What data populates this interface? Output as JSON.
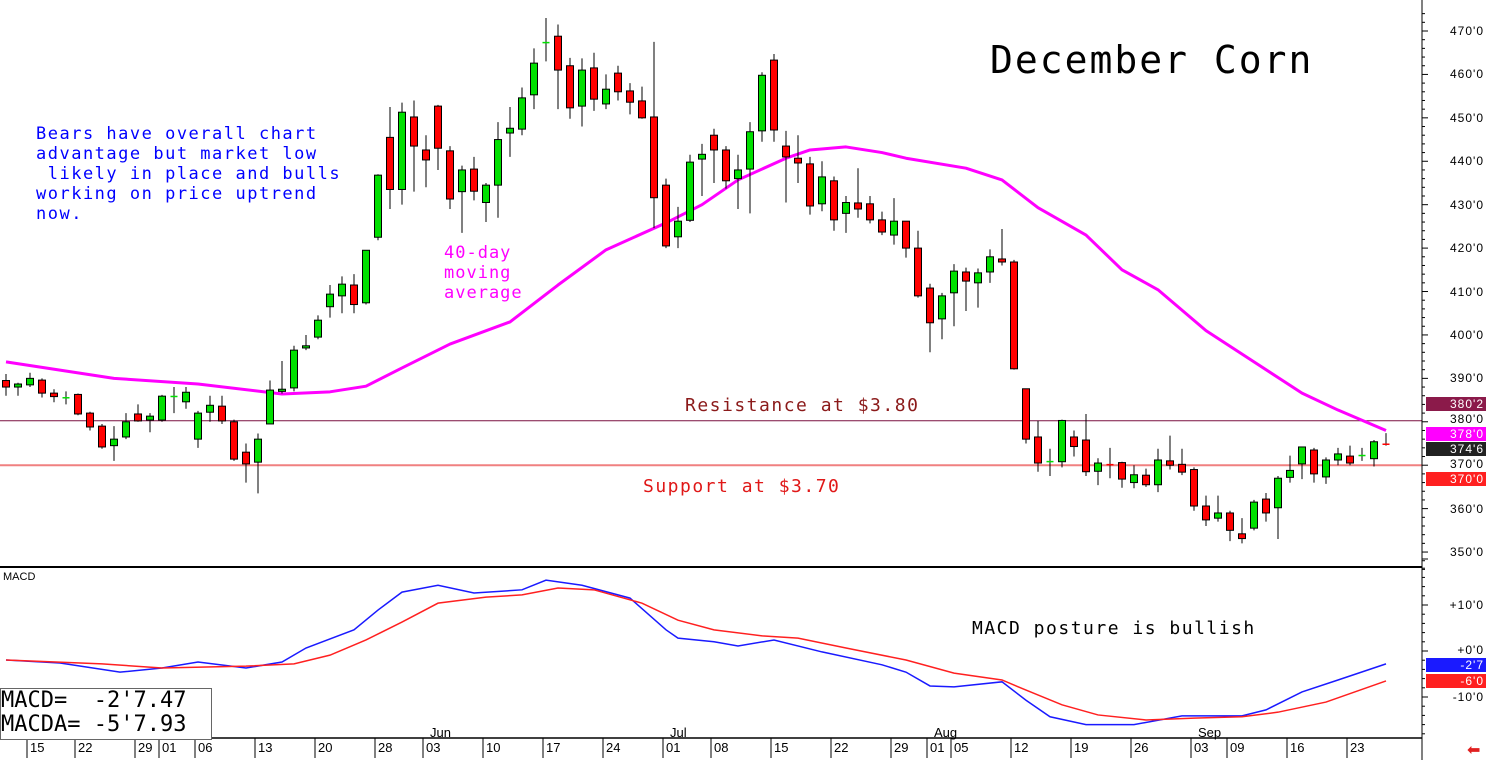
{
  "chart_data": {
    "type": "candlestick",
    "title": "December Corn",
    "price_axis": {
      "ylim": [
        347,
        474
      ],
      "ticks": [
        "470'0",
        "460'0",
        "450'0",
        "440'0",
        "430'0",
        "420'0",
        "410'0",
        "400'0",
        "390'0",
        "380'0",
        "370'0",
        "360'0",
        "350'0"
      ],
      "tick_values": [
        470,
        460,
        450,
        440,
        430,
        420,
        410,
        400,
        390,
        380,
        370,
        360,
        350
      ]
    },
    "candles_ohlc": [
      [
        389.5,
        391,
        386,
        388
      ],
      [
        388,
        389,
        386,
        388.7
      ],
      [
        388.5,
        391.3,
        388,
        390
      ],
      [
        389.6,
        390,
        385.6,
        386.6
      ],
      [
        386.6,
        387.5,
        384.5,
        385.8
      ],
      [
        385.7,
        387,
        384,
        385.7
      ],
      [
        386.3,
        386.5,
        381.5,
        381.8
      ],
      [
        382,
        382.3,
        378,
        378.8
      ],
      [
        379,
        379.5,
        373.8,
        374.2
      ],
      [
        374.5,
        379,
        371,
        376
      ],
      [
        376.5,
        382,
        376,
        380
      ],
      [
        381.8,
        384,
        380,
        380.2
      ],
      [
        380.4,
        382,
        377.6,
        381.3
      ],
      [
        380.4,
        386.2,
        380,
        385.9
      ],
      [
        386,
        388,
        382,
        386
      ],
      [
        384.6,
        388,
        383,
        386.8
      ],
      [
        376,
        382.5,
        374,
        382
      ],
      [
        382.2,
        386,
        380,
        383.8
      ],
      [
        383.6,
        386,
        379.5,
        380.2
      ],
      [
        380,
        380.5,
        371,
        371.4
      ],
      [
        373,
        375,
        366,
        370.3
      ],
      [
        370.7,
        377.3,
        363.5,
        376
      ],
      [
        379.5,
        389.5,
        379.5,
        387.3
      ],
      [
        387,
        394,
        386.5,
        387.5
      ],
      [
        387.8,
        397.5,
        387,
        396.5
      ],
      [
        397,
        400,
        396.5,
        397.5
      ],
      [
        399.5,
        404.5,
        399,
        403.4
      ],
      [
        406.5,
        411.5,
        404,
        409.4
      ],
      [
        409,
        413.5,
        405,
        411.7
      ],
      [
        411.5,
        414,
        405,
        407
      ],
      [
        407.4,
        419.5,
        407,
        419.5
      ],
      [
        422.5,
        437,
        421.8,
        436.8
      ],
      [
        445.5,
        452.5,
        429,
        433.5
      ],
      [
        433.5,
        453.5,
        430,
        451.3
      ],
      [
        450.2,
        454,
        433,
        443.5
      ],
      [
        442.6,
        446,
        434,
        440.3
      ],
      [
        452.7,
        453,
        438,
        443
      ],
      [
        442.4,
        443.5,
        429,
        431.3
      ],
      [
        433,
        439,
        423.5,
        438
      ],
      [
        438.2,
        441,
        431,
        433.1
      ],
      [
        430.5,
        435,
        426,
        434.5
      ],
      [
        434.5,
        449,
        427,
        445
      ],
      [
        446.5,
        452.5,
        441,
        447.6
      ],
      [
        447.4,
        457,
        446,
        454.6
      ],
      [
        455.3,
        466,
        452,
        462.6
      ],
      [
        467.5,
        473,
        463,
        467.5
      ],
      [
        468.8,
        471.5,
        452,
        461
      ],
      [
        462,
        463.8,
        449.8,
        452.3
      ],
      [
        452.7,
        463.7,
        448,
        461
      ],
      [
        461.5,
        465,
        451.6,
        454.3
      ],
      [
        453.2,
        460,
        452,
        456.6
      ],
      [
        460.3,
        462,
        454,
        456
      ],
      [
        456.2,
        458,
        450.8,
        453.6
      ],
      [
        453.9,
        457.2,
        449.8,
        450
      ],
      [
        450.2,
        467.5,
        424.6,
        431.6
      ],
      [
        434.5,
        436,
        420,
        420.5
      ],
      [
        422.6,
        429.5,
        420,
        426.2
      ],
      [
        426.4,
        441.5,
        426,
        439.8
      ],
      [
        440.5,
        444,
        432,
        441.6
      ],
      [
        446,
        447.5,
        435,
        442.6
      ],
      [
        442.6,
        443.5,
        433.7,
        435.5
      ],
      [
        436,
        441.5,
        429,
        438
      ],
      [
        438.2,
        449,
        428,
        446.8
      ],
      [
        447,
        460.5,
        444.5,
        459.8
      ],
      [
        463.3,
        464.7,
        444.5,
        447.2
      ],
      [
        443.5,
        447,
        430.5,
        441
      ],
      [
        440.7,
        446,
        435,
        439.6
      ],
      [
        439.4,
        441,
        427.7,
        429.7
      ],
      [
        430.2,
        440,
        428.5,
        436.4
      ],
      [
        435.5,
        436.5,
        424,
        426.5
      ],
      [
        428,
        432,
        423.5,
        430.5
      ],
      [
        430.4,
        438.4,
        427,
        429
      ],
      [
        430.2,
        432,
        425.7,
        426.5
      ],
      [
        426.5,
        428.4,
        423,
        423.7
      ],
      [
        423,
        431.5,
        420.8,
        426.2
      ],
      [
        426.2,
        426.2,
        417.8,
        420
      ],
      [
        420,
        424,
        408.6,
        409
      ],
      [
        410.8,
        411.8,
        396,
        402.8
      ],
      [
        403.7,
        409.7,
        399,
        409
      ],
      [
        409.7,
        416.3,
        402,
        414.7
      ],
      [
        414.5,
        415.5,
        405.5,
        412.4
      ],
      [
        412,
        415.3,
        406.3,
        414.3
      ],
      [
        414.5,
        419.7,
        412,
        418
      ],
      [
        417.5,
        424.4,
        416,
        416.8
      ],
      [
        416.8,
        417.3,
        392,
        392.2
      ],
      [
        387.6,
        387.6,
        375,
        376
      ],
      [
        376.5,
        380.2,
        368.5,
        370.5
      ],
      [
        371,
        373.8,
        367.5,
        371
      ],
      [
        370.8,
        380.5,
        369.5,
        380.3
      ],
      [
        376.5,
        378,
        372,
        374.3
      ],
      [
        375.8,
        381.8,
        367.5,
        368.5
      ],
      [
        368.6,
        371.6,
        365.4,
        370.5
      ],
      [
        370.3,
        374,
        367,
        370
      ],
      [
        370.6,
        370.8,
        364.8,
        366.8
      ],
      [
        366,
        370,
        364.7,
        367.8
      ],
      [
        367.7,
        369.2,
        365,
        365.5
      ],
      [
        365.5,
        373.8,
        363.8,
        371.2
      ],
      [
        371,
        376.8,
        369,
        370
      ],
      [
        370.2,
        373.8,
        367.7,
        368.4
      ],
      [
        369,
        369.5,
        359.5,
        360.6
      ],
      [
        360.6,
        363,
        356,
        357.4
      ],
      [
        357.8,
        363,
        357,
        359
      ],
      [
        359,
        359.5,
        352.5,
        355
      ],
      [
        354.2,
        357.8,
        352,
        353.1
      ],
      [
        355.5,
        362,
        355,
        361.5
      ],
      [
        362.2,
        363.6,
        357,
        359
      ],
      [
        360.2,
        367.5,
        353,
        367
      ],
      [
        367.2,
        372.2,
        366,
        368.8
      ],
      [
        370.3,
        374.2,
        366.8,
        374.2
      ],
      [
        373.5,
        374,
        366,
        368
      ],
      [
        367.3,
        371.8,
        365.7,
        371.2
      ],
      [
        371.2,
        374,
        370,
        372.6
      ],
      [
        372.1,
        374.5,
        370,
        370.5
      ],
      [
        372.3,
        374,
        371,
        372.4
      ],
      [
        371.5,
        375.8,
        369.7,
        375.4
      ],
      [
        375,
        377.4,
        374.5,
        374.75
      ]
    ],
    "moving_average": {
      "label": "40-day moving average",
      "color": "#ff00ff",
      "points_bar_value": [
        [
          1,
          393.8
        ],
        [
          10,
          390
        ],
        [
          17,
          388.7
        ],
        [
          24,
          386.4
        ],
        [
          28,
          386.9
        ],
        [
          31,
          388.2
        ],
        [
          34,
          392.4
        ],
        [
          38,
          397.9
        ],
        [
          43,
          403
        ],
        [
          47,
          411.5
        ],
        [
          51,
          419.6
        ],
        [
          56,
          425.8
        ],
        [
          59,
          430
        ],
        [
          62,
          435.7
        ],
        [
          66,
          440.7
        ],
        [
          68,
          442.6
        ],
        [
          71,
          443.3
        ],
        [
          74,
          442
        ],
        [
          76,
          440.7
        ],
        [
          81,
          438.4
        ],
        [
          84,
          435.7
        ],
        [
          87,
          429.3
        ],
        [
          91,
          423
        ],
        [
          94,
          415
        ],
        [
          97,
          410.4
        ],
        [
          101,
          401
        ],
        [
          105,
          393.8
        ],
        [
          109,
          386.6
        ],
        [
          112,
          382.7
        ],
        [
          116,
          378
        ]
      ]
    },
    "horizontal_lines": [
      {
        "value": 380.25,
        "color": "#7a1040",
        "label": "Resistance at $3.80"
      },
      {
        "value": 370,
        "color": "#f08080",
        "label": "Support at $3.70"
      }
    ],
    "right_axis_badges": [
      {
        "text": "380'2",
        "value": 380.25,
        "color": "#8b1a4a"
      },
      {
        "text": "378'0",
        "value": 378,
        "color": "#ff00ff"
      },
      {
        "text": "374'6",
        "value": 374.75,
        "color": "#222222"
      },
      {
        "text": "370'0",
        "value": 370,
        "color": "#ff2020"
      }
    ],
    "x_ticks": [
      {
        "bar": 3,
        "label": "15"
      },
      {
        "bar": 7,
        "label": "22"
      },
      {
        "bar": 12,
        "label": "29"
      },
      {
        "bar": 14,
        "label": "01"
      },
      {
        "bar": 17,
        "label": "06"
      },
      {
        "bar": 22,
        "label": "13"
      },
      {
        "bar": 27,
        "label": "20"
      },
      {
        "bar": 32,
        "label": "28"
      },
      {
        "bar": 36,
        "label": "03"
      },
      {
        "bar": 41,
        "label": "10"
      },
      {
        "bar": 46,
        "label": "17"
      },
      {
        "bar": 51,
        "label": "24"
      },
      {
        "bar": 56,
        "label": "01"
      },
      {
        "bar": 60,
        "label": "08"
      },
      {
        "bar": 65,
        "label": "15"
      },
      {
        "bar": 70,
        "label": "22"
      },
      {
        "bar": 75,
        "label": "29"
      },
      {
        "bar": 78,
        "label": "01"
      },
      {
        "bar": 80,
        "label": "05"
      },
      {
        "bar": 85,
        "label": "12"
      },
      {
        "bar": 90,
        "label": "19"
      },
      {
        "bar": 95,
        "label": "26"
      },
      {
        "bar": 100,
        "label": "03"
      },
      {
        "bar": 103,
        "label": "09"
      },
      {
        "bar": 108,
        "label": "16"
      },
      {
        "bar": 113,
        "label": "23"
      }
    ],
    "months": [
      {
        "bar": 36,
        "label": "Jun"
      },
      {
        "bar": 56,
        "label": "Jul"
      },
      {
        "bar": 78,
        "label": "Aug"
      },
      {
        "bar": 100,
        "label": "Sep"
      }
    ],
    "macd": {
      "panel_label": "MACD",
      "ylim": [
        -19,
        20
      ],
      "ticks": [
        {
          "value": 10,
          "label": "+10'0"
        },
        {
          "value": 0,
          "label": "+0'0"
        },
        {
          "value": -10,
          "label": "-10'0"
        }
      ],
      "series": [
        {
          "name": "MACD",
          "color": "#1a1aff",
          "badge": "-2'7",
          "points_bar_value": [
            [
              1,
              -1.96
            ],
            [
              5.5,
              -2.6
            ],
            [
              10.5,
              -4.6
            ],
            [
              14,
              -3.7
            ],
            [
              17,
              -2.4
            ],
            [
              21,
              -3.7
            ],
            [
              24,
              -2.4
            ],
            [
              26,
              0.65
            ],
            [
              30,
              4.6
            ],
            [
              32,
              8.9
            ],
            [
              34,
              12.8
            ],
            [
              37,
              14.3
            ],
            [
              40,
              12.6
            ],
            [
              44,
              13.3
            ],
            [
              46,
              15.4
            ],
            [
              49,
              14.3
            ],
            [
              53,
              11.5
            ],
            [
              56,
              4.6
            ],
            [
              57,
              2.8
            ],
            [
              60,
              2.0
            ],
            [
              62,
              1.1
            ],
            [
              65,
              2.4
            ],
            [
              69,
              -0.2
            ],
            [
              74,
              -3
            ],
            [
              76,
              -4.6
            ],
            [
              78,
              -7.6
            ],
            [
              80,
              -7.8
            ],
            [
              84,
              -6.7
            ],
            [
              86,
              -10.7
            ],
            [
              88,
              -14.3
            ],
            [
              91,
              -16
            ],
            [
              95,
              -16
            ],
            [
              99,
              -14.1
            ],
            [
              104,
              -14.1
            ],
            [
              106,
              -12.8
            ],
            [
              109,
              -8.9
            ],
            [
              112,
              -6.3
            ],
            [
              116,
              -2.8
            ]
          ]
        },
        {
          "name": "MACDA",
          "color": "#ff2020",
          "badge": "-6'0",
          "points_bar_value": [
            [
              1,
              -1.96
            ],
            [
              9,
              -2.8
            ],
            [
              14,
              -3.7
            ],
            [
              21,
              -3.3
            ],
            [
              25,
              -2.8
            ],
            [
              28,
              -0.9
            ],
            [
              31,
              2.4
            ],
            [
              34,
              6.3
            ],
            [
              37,
              10.4
            ],
            [
              41,
              11.7
            ],
            [
              44,
              12.2
            ],
            [
              47,
              13.7
            ],
            [
              50,
              13.3
            ],
            [
              54,
              10.4
            ],
            [
              57,
              6.7
            ],
            [
              60,
              4.6
            ],
            [
              64,
              3.3
            ],
            [
              67,
              2.8
            ],
            [
              71,
              0.65
            ],
            [
              76,
              -1.96
            ],
            [
              80,
              -4.8
            ],
            [
              84,
              -6.3
            ],
            [
              86,
              -8.5
            ],
            [
              89,
              -11.7
            ],
            [
              92,
              -13.9
            ],
            [
              96,
              -15
            ],
            [
              100,
              -14.6
            ],
            [
              104,
              -14.3
            ],
            [
              107,
              -13.3
            ],
            [
              111,
              -11.1
            ],
            [
              116,
              -6.5
            ]
          ]
        }
      ],
      "readout": {
        "macd_label": "MACD=",
        "macd_value": "-2'7.47",
        "macda_label": "MACDA=",
        "macda_value": "-5'7.93"
      }
    }
  },
  "annotations": {
    "bears_note": "Bears have overall chart\nadvantage but market low\n likely in place and bulls\nworking on price uptrend\nnow.",
    "ma_note": "40-day\nmoving\naverage",
    "macd_note": "MACD posture is bullish"
  },
  "colors": {
    "up": "#00e000",
    "down": "#ff0000"
  }
}
